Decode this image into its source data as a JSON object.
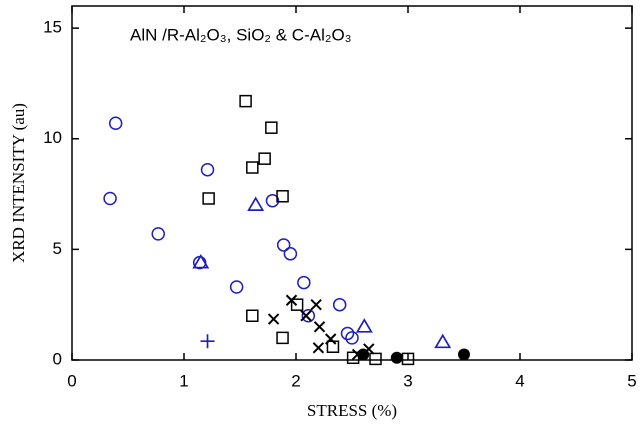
{
  "chart_data": {
    "type": "scatter",
    "title": "AlN /R-Al₂O₃, SiO₂ & C-Al₂O₃",
    "x_label": "STRESS   (%)",
    "y_label": "XRD  INTENSITY  (au)",
    "xlim": [
      0,
      5
    ],
    "xticks": [
      0,
      1,
      2,
      3,
      4,
      5
    ],
    "ylim": [
      0,
      16
    ],
    "yticks": [
      0,
      5,
      10,
      15
    ],
    "series": [
      {
        "marker": "circle",
        "color": "#1f1fbf",
        "x": [
          0.34,
          0.39,
          0.77,
          1.14,
          1.21,
          1.47,
          1.79,
          1.89,
          1.95,
          2.07,
          2.11,
          2.39,
          2.46,
          2.5
        ],
        "values": [
          7.3,
          10.7,
          5.7,
          4.4,
          8.6,
          3.3,
          7.2,
          5.2,
          4.8,
          3.5,
          2.0,
          2.5,
          1.2,
          1.0
        ]
      },
      {
        "marker": "square",
        "color": "#000000",
        "x": [
          1.55,
          1.78,
          1.72,
          1.61,
          1.88,
          1.22,
          1.61,
          1.88,
          2.01,
          2.33,
          2.51,
          2.71,
          3.0
        ],
        "values": [
          11.7,
          10.5,
          9.1,
          8.7,
          7.4,
          7.3,
          2.0,
          1.0,
          2.5,
          0.6,
          0.1,
          0.05,
          0.05
        ]
      },
      {
        "marker": "triangle",
        "color": "#1f1fbf",
        "x": [
          1.15,
          1.64,
          2.61,
          3.31
        ],
        "values": [
          4.4,
          7.0,
          1.5,
          0.8
        ]
      },
      {
        "marker": "cross",
        "color": "#000000",
        "x": [
          1.96,
          1.8,
          2.09,
          2.18,
          2.21,
          2.31,
          2.2,
          2.55,
          2.65
        ],
        "values": [
          2.7,
          1.85,
          2.0,
          2.5,
          1.5,
          0.95,
          0.55,
          0.25,
          0.5
        ]
      },
      {
        "marker": "dot",
        "color": "#000000",
        "x": [
          2.6,
          2.9,
          3.5
        ],
        "values": [
          0.25,
          0.1,
          0.25
        ]
      },
      {
        "marker": "plus",
        "color": "#1f1fbf",
        "x": [
          1.21
        ],
        "values": [
          0.85
        ]
      }
    ]
  }
}
